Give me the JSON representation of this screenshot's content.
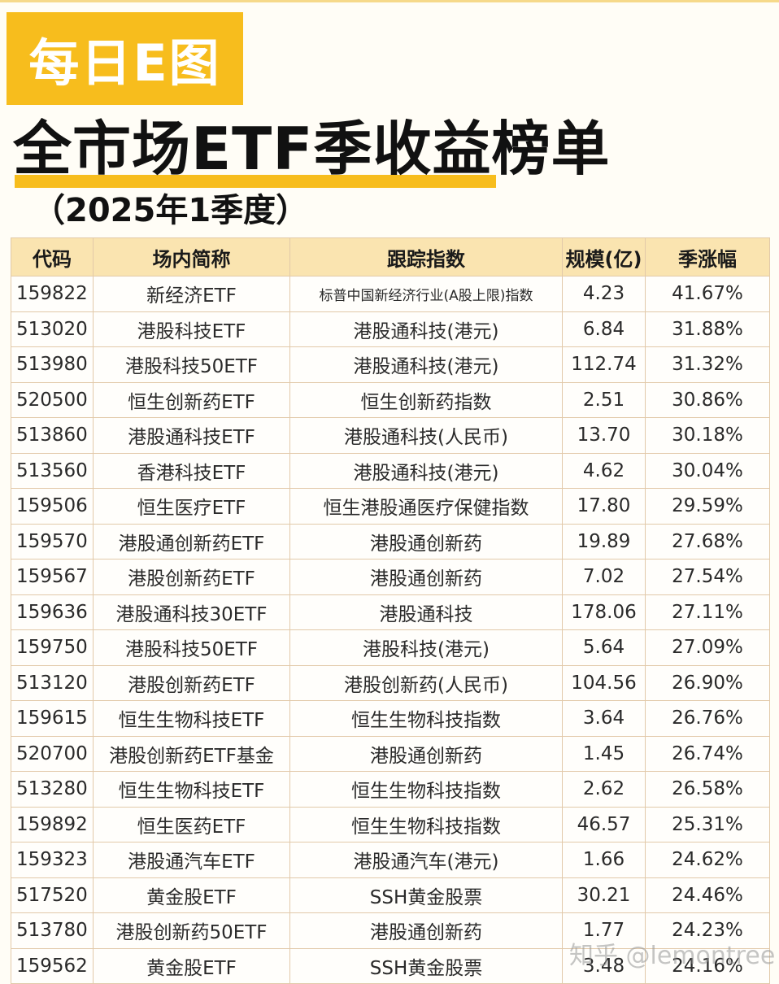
{
  "badge": {
    "text": "每日E图"
  },
  "header": {
    "title": "全市场ETF季收益榜单",
    "subtitle": "（2025年1季度）"
  },
  "table": {
    "columns": [
      "代码",
      "场内简称",
      "跟踪指数",
      "规模(亿)",
      "季涨幅"
    ],
    "rows": [
      {
        "code": "159822",
        "name": "新经济ETF",
        "index": "标普中国新经济行业(A股上限)指数",
        "scale": "4.23",
        "return": "41.67%"
      },
      {
        "code": "513020",
        "name": "港股科技ETF",
        "index": "港股通科技(港元)",
        "scale": "6.84",
        "return": "31.88%"
      },
      {
        "code": "513980",
        "name": "港股科技50ETF",
        "index": "港股通科技(港元)",
        "scale": "112.74",
        "return": "31.32%"
      },
      {
        "code": "520500",
        "name": "恒生创新药ETF",
        "index": "恒生创新药指数",
        "scale": "2.51",
        "return": "30.86%"
      },
      {
        "code": "513860",
        "name": "港股通科技ETF",
        "index": "港股通科技(人民币)",
        "scale": "13.70",
        "return": "30.18%"
      },
      {
        "code": "513560",
        "name": "香港科技ETF",
        "index": "港股通科技(港元)",
        "scale": "4.62",
        "return": "30.04%"
      },
      {
        "code": "159506",
        "name": "恒生医疗ETF",
        "index": "恒生港股通医疗保健指数",
        "scale": "17.80",
        "return": "29.59%"
      },
      {
        "code": "159570",
        "name": "港股通创新药ETF",
        "index": "港股通创新药",
        "scale": "19.89",
        "return": "27.68%"
      },
      {
        "code": "159567",
        "name": "港股创新药ETF",
        "index": "港股通创新药",
        "scale": "7.02",
        "return": "27.54%"
      },
      {
        "code": "159636",
        "name": "港股通科技30ETF",
        "index": "港股通科技",
        "scale": "178.06",
        "return": "27.11%"
      },
      {
        "code": "159750",
        "name": "港股科技50ETF",
        "index": "港股科技(港元)",
        "scale": "5.64",
        "return": "27.09%"
      },
      {
        "code": "513120",
        "name": "港股创新药ETF",
        "index": "港股创新药(人民币)",
        "scale": "104.56",
        "return": "26.90%"
      },
      {
        "code": "159615",
        "name": "恒生生物科技ETF",
        "index": "恒生生物科技指数",
        "scale": "3.64",
        "return": "26.76%"
      },
      {
        "code": "520700",
        "name": "港股创新药ETF基金",
        "index": "港股通创新药",
        "scale": "1.45",
        "return": "26.74%"
      },
      {
        "code": "513280",
        "name": "恒生生物科技ETF",
        "index": "恒生生物科技指数",
        "scale": "2.62",
        "return": "26.58%"
      },
      {
        "code": "159892",
        "name": "恒生医药ETF",
        "index": "恒生生物科技指数",
        "scale": "46.57",
        "return": "25.31%"
      },
      {
        "code": "159323",
        "name": "港股通汽车ETF",
        "index": "港股通汽车(港元)",
        "scale": "1.66",
        "return": "24.62%"
      },
      {
        "code": "517520",
        "name": "黄金股ETF",
        "index": "SSH黄金股票",
        "scale": "30.21",
        "return": "24.46%"
      },
      {
        "code": "513780",
        "name": "港股创新药50ETF",
        "index": "港股通创新药",
        "scale": "1.77",
        "return": "24.23%"
      },
      {
        "code": "159562",
        "name": "黄金股ETF",
        "index": "SSH黄金股票",
        "scale": "3.48",
        "return": "24.16%"
      }
    ]
  },
  "watermark": "知乎 @lemontree",
  "colors": {
    "accent": "#f7bd1d",
    "header_bg": "#fae4b0",
    "border": "#e2c9a9"
  }
}
